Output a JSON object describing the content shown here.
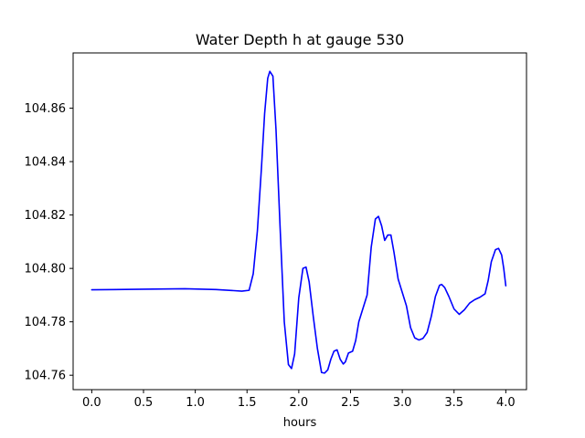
{
  "chart_data": {
    "type": "line",
    "title": "Water Depth h at gauge 530",
    "xlabel": "hours",
    "ylabel": "",
    "xlim": [
      -0.18,
      4.2
    ],
    "ylim": [
      104.7546,
      104.8807
    ],
    "xticks": [
      0.0,
      0.5,
      1.0,
      1.5,
      2.0,
      2.5,
      3.0,
      3.5,
      4.0
    ],
    "xtick_labels": [
      "0.0",
      "0.5",
      "1.0",
      "1.5",
      "2.0",
      "2.5",
      "3.0",
      "3.5",
      "4.0"
    ],
    "yticks": [
      104.76,
      104.78,
      104.8,
      104.82,
      104.84,
      104.86
    ],
    "ytick_labels": [
      "104.76",
      "104.78",
      "104.80",
      "104.82",
      "104.84",
      "104.86"
    ],
    "grid": false,
    "series": [
      {
        "color": "#0000ff",
        "x": [
          0.0,
          0.5,
          0.9,
          1.2,
          1.45,
          1.52,
          1.56,
          1.6,
          1.64,
          1.67,
          1.7,
          1.72,
          1.75,
          1.78,
          1.82,
          1.86,
          1.9,
          1.93,
          1.96,
          2.0,
          2.04,
          2.07,
          2.1,
          2.14,
          2.18,
          2.22,
          2.25,
          2.28,
          2.31,
          2.34,
          2.37,
          2.4,
          2.43,
          2.45,
          2.48,
          2.52,
          2.55,
          2.58,
          2.62,
          2.66,
          2.7,
          2.74,
          2.77,
          2.8,
          2.83,
          2.86,
          2.89,
          2.92,
          2.96,
          3.0,
          3.04,
          3.08,
          3.12,
          3.16,
          3.2,
          3.24,
          3.28,
          3.32,
          3.36,
          3.38,
          3.41,
          3.45,
          3.5,
          3.55,
          3.6,
          3.65,
          3.7,
          3.75,
          3.8,
          3.83,
          3.86,
          3.9,
          3.93,
          3.96,
          3.98,
          4.0
        ],
        "y": [
          104.792,
          104.7922,
          104.7924,
          104.7921,
          104.7915,
          104.7918,
          104.798,
          104.814,
          104.838,
          104.858,
          104.8712,
          104.8738,
          104.872,
          104.852,
          104.815,
          104.78,
          104.764,
          104.7625,
          104.768,
          104.789,
          104.8,
          104.8005,
          104.795,
          104.782,
          104.77,
          104.761,
          104.7608,
          104.762,
          104.766,
          104.769,
          104.7695,
          104.766,
          104.7642,
          104.765,
          104.7683,
          104.769,
          104.773,
          104.78,
          104.785,
          104.79,
          104.808,
          104.8185,
          104.8195,
          104.816,
          104.8105,
          104.8125,
          104.8125,
          104.806,
          104.796,
          104.791,
          104.786,
          104.7778,
          104.774,
          104.7732,
          104.7738,
          104.776,
          104.782,
          104.7895,
          104.7937,
          104.794,
          104.7928,
          104.7895,
          104.7848,
          104.7828,
          104.7845,
          104.787,
          104.7883,
          104.7892,
          104.7905,
          104.7955,
          104.8025,
          104.807,
          104.8075,
          104.805,
          104.8,
          104.7935
        ]
      }
    ]
  }
}
